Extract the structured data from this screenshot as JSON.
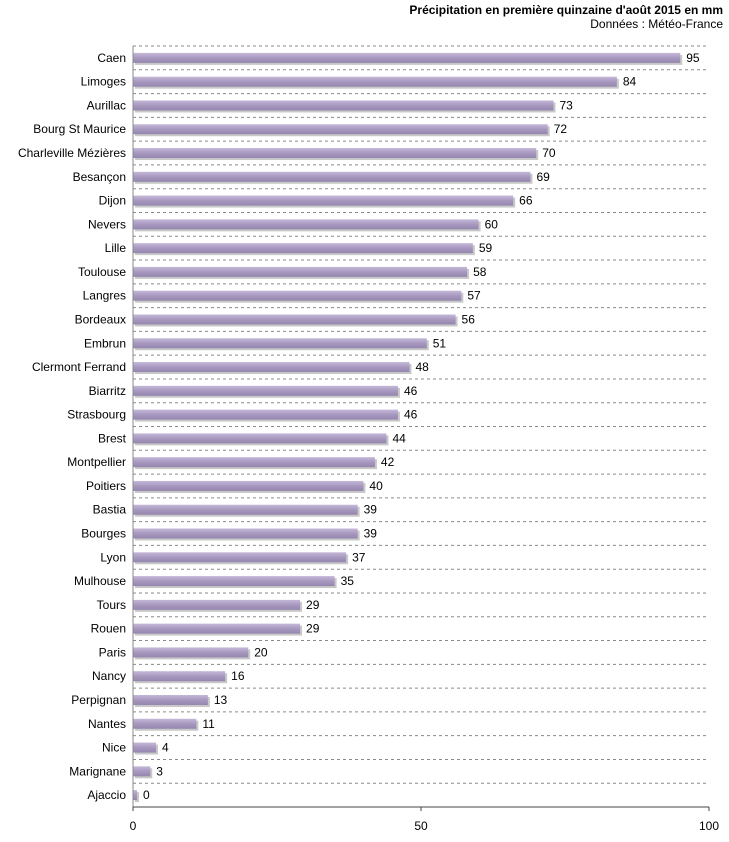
{
  "header": {
    "title": "Précipitation en première quinzaine  d'août 2015 en mm",
    "source": "Données : Météo-France"
  },
  "chart_data": {
    "type": "bar",
    "orientation": "horizontal",
    "title": "Précipitation en première quinzaine  d'août 2015 en mm",
    "categories": [
      "Caen",
      "Limoges",
      "Aurillac",
      "Bourg St Maurice",
      "Charleville Mézières",
      "Besançon",
      "Dijon",
      "Nevers",
      "Lille",
      "Toulouse",
      "Langres",
      "Bordeaux",
      "Embrun",
      "Clermont Ferrand",
      "Biarritz",
      "Strasbourg",
      "Brest",
      "Montpellier",
      "Poitiers",
      "Bastia",
      "Bourges",
      "Lyon",
      "Mulhouse",
      "Tours",
      "Rouen",
      "Paris",
      "Nancy",
      "Perpignan",
      "Nantes",
      "Nice",
      "Marignane",
      "Ajaccio"
    ],
    "values": [
      95,
      84,
      73,
      72,
      70,
      69,
      66,
      60,
      59,
      58,
      57,
      56,
      51,
      48,
      46,
      46,
      44,
      42,
      40,
      39,
      39,
      37,
      35,
      29,
      29,
      20,
      16,
      13,
      11,
      4,
      3,
      0
    ],
    "xlim": [
      0,
      100
    ],
    "xticks": [
      0,
      50,
      100
    ],
    "bar_color": "#a898c0",
    "grid": "dashed horizontal separators",
    "data_labels": true
  }
}
